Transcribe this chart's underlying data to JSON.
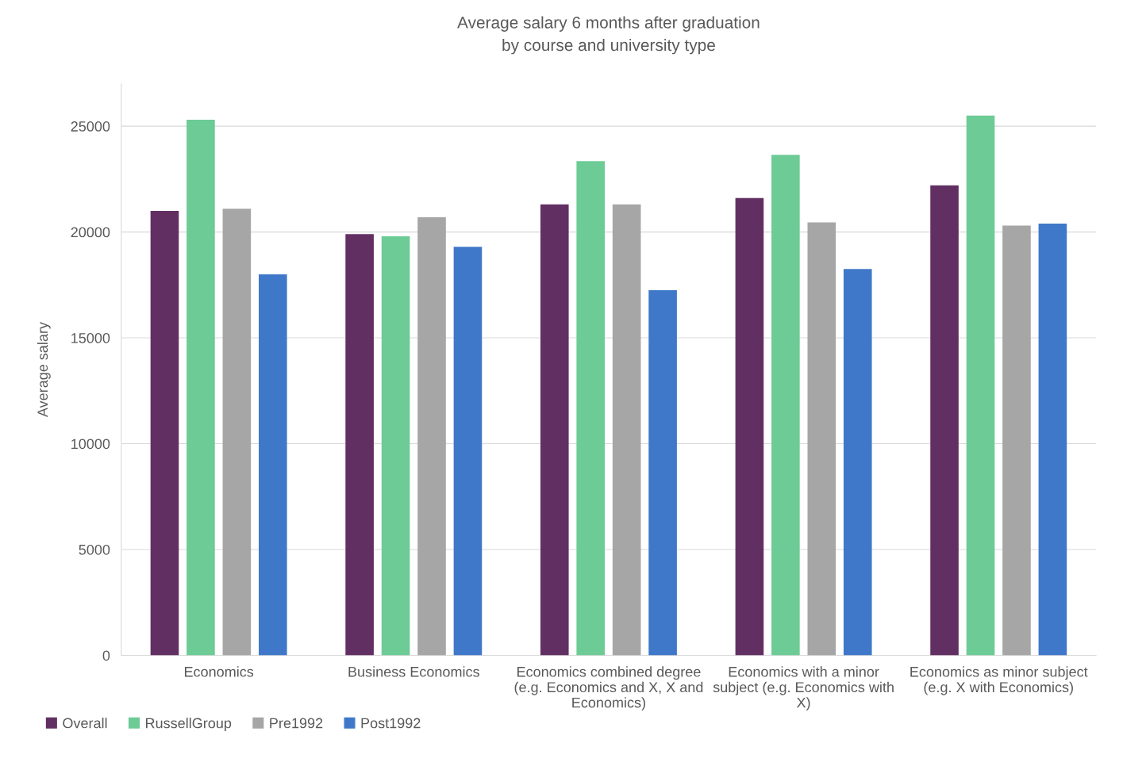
{
  "chart_data": {
    "type": "bar",
    "title": "Average salary 6 months after graduation\nby course and university type",
    "ylabel": "Average salary",
    "categories": [
      "Economics",
      "Business Economics",
      "Economics combined degree\n(e.g. Economics and X, X and\nEconomics)",
      "Economics with a minor\nsubject (e.g. Economics with\nX)",
      "Economics as minor subject\n(e.g. X with Economics)"
    ],
    "series": [
      {
        "name": "Overall",
        "color": "#622f63",
        "values": [
          21000,
          19900,
          21300,
          21600,
          22200
        ]
      },
      {
        "name": "RussellGroup",
        "color": "#6dcb95",
        "values": [
          25300,
          19800,
          23350,
          23650,
          25500
        ]
      },
      {
        "name": "Pre1992",
        "color": "#a6a6a6",
        "values": [
          21100,
          20700,
          21300,
          20450,
          20300
        ]
      },
      {
        "name": "Post1992",
        "color": "#3f78c9",
        "values": [
          18000,
          19300,
          17250,
          18250,
          20400
        ]
      }
    ],
    "ylim": [
      0,
      27000
    ],
    "yticks": [
      0,
      5000,
      10000,
      15000,
      20000,
      25000
    ],
    "grid": "y",
    "legend": "bottom left"
  }
}
